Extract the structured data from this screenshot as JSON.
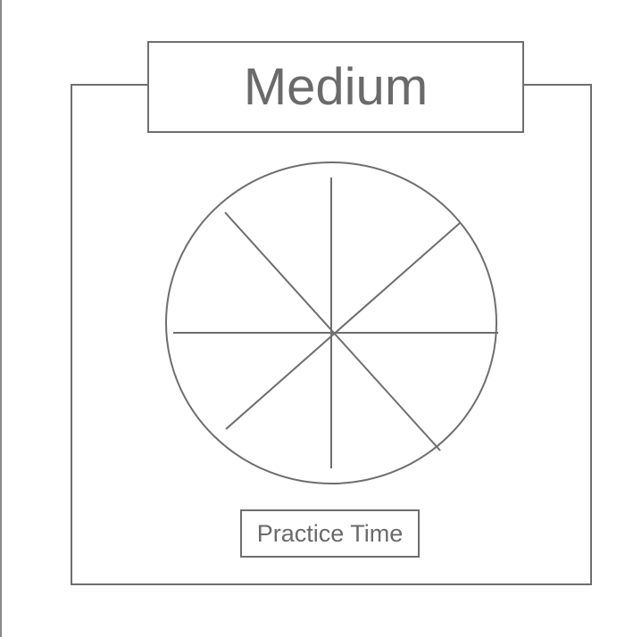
{
  "title": "Medium",
  "practice_button_label": "Practice Time",
  "wheel": {
    "segments": 8
  },
  "colors": {
    "stroke": "#6e6e6e",
    "text": "#6a6a6a",
    "background": "#ffffff"
  }
}
